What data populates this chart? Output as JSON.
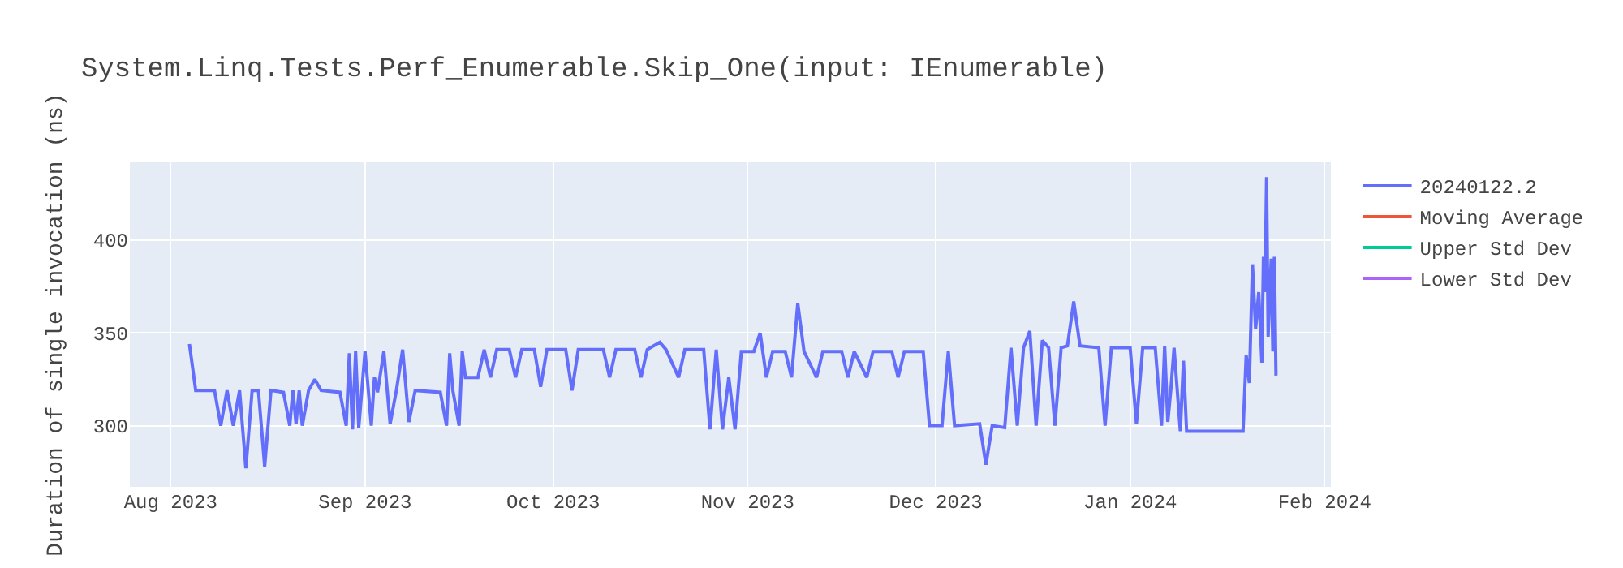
{
  "chart_data": {
    "type": "line",
    "title": "System.Linq.Tests.Perf_Enumerable.Skip_One(input: IEnumerable)",
    "ylabel": "Duration of single invocation (ns)",
    "xlim": [
      "2023-07-25T12:00",
      "2024-02-02"
    ],
    "xticks": [
      {
        "value": "2023-08-01",
        "label": "Aug 2023"
      },
      {
        "value": "2023-09-01",
        "label": "Sep 2023"
      },
      {
        "value": "2023-10-01",
        "label": "Oct 2023"
      },
      {
        "value": "2023-11-01",
        "label": "Nov 2023"
      },
      {
        "value": "2023-12-01",
        "label": "Dec 2023"
      },
      {
        "value": "2024-01-01",
        "label": "Jan 2024"
      },
      {
        "value": "2024-02-01",
        "label": "Feb 2024"
      }
    ],
    "ylim": [
      267,
      442
    ],
    "yticks": [
      300,
      350,
      400
    ],
    "grid": true,
    "legend": "top right",
    "marker": "none",
    "line_style": "solid",
    "series": [
      {
        "name": "20240122.2",
        "color": "#636efa",
        "x": [
          "2023-08-04",
          "2023-08-05",
          "2023-08-08",
          "2023-08-09",
          "2023-08-10",
          "2023-08-11",
          "2023-08-12",
          "2023-08-13",
          "2023-08-14",
          "2023-08-15",
          "2023-08-16",
          "2023-08-17",
          "2023-08-19",
          "2023-08-20",
          "2023-08-20T12:00",
          "2023-08-21",
          "2023-08-21T12:00",
          "2023-08-22",
          "2023-08-23",
          "2023-08-24",
          "2023-08-25",
          "2023-08-28",
          "2023-08-29",
          "2023-08-29T12:00",
          "2023-08-30",
          "2023-08-30T12:00",
          "2023-08-31",
          "2023-09-01",
          "2023-09-02",
          "2023-09-02T12:00",
          "2023-09-03",
          "2023-09-04",
          "2023-09-05",
          "2023-09-06",
          "2023-09-07",
          "2023-09-08",
          "2023-09-09",
          "2023-09-13",
          "2023-09-14",
          "2023-09-14T12:00",
          "2023-09-15",
          "2023-09-16",
          "2023-09-16T12:00",
          "2023-09-17",
          "2023-09-19",
          "2023-09-20",
          "2023-09-21",
          "2023-09-22",
          "2023-09-24",
          "2023-09-25",
          "2023-09-26",
          "2023-09-28",
          "2023-09-29",
          "2023-09-30",
          "2023-10-03",
          "2023-10-04",
          "2023-10-05",
          "2023-10-09",
          "2023-10-10",
          "2023-10-11",
          "2023-10-14",
          "2023-10-15",
          "2023-10-16",
          "2023-10-18",
          "2023-10-19",
          "2023-10-21",
          "2023-10-22",
          "2023-10-25",
          "2023-10-26",
          "2023-10-27",
          "2023-10-28",
          "2023-10-29",
          "2023-10-30",
          "2023-10-31",
          "2023-11-02",
          "2023-11-03",
          "2023-11-04",
          "2023-11-05",
          "2023-11-07",
          "2023-11-08",
          "2023-11-09",
          "2023-11-10",
          "2023-11-12",
          "2023-11-13",
          "2023-11-16",
          "2023-11-17",
          "2023-11-18",
          "2023-11-20",
          "2023-11-21",
          "2023-11-24",
          "2023-11-25",
          "2023-11-26",
          "2023-11-29",
          "2023-11-30",
          "2023-12-02",
          "2023-12-03",
          "2023-12-04",
          "2023-12-08",
          "2023-12-09",
          "2023-12-10",
          "2023-12-12",
          "2023-12-13",
          "2023-12-14",
          "2023-12-15",
          "2023-12-16",
          "2023-12-17",
          "2023-12-18",
          "2023-12-19",
          "2023-12-20",
          "2023-12-21",
          "2023-12-22",
          "2023-12-23",
          "2023-12-24",
          "2023-12-27",
          "2023-12-28",
          "2023-12-29",
          "2024-01-01",
          "2024-01-02",
          "2024-01-03",
          "2024-01-05",
          "2024-01-06",
          "2024-01-06T12:00",
          "2024-01-07",
          "2024-01-07T12:00",
          "2024-01-08",
          "2024-01-09",
          "2024-01-09T12:00",
          "2024-01-10",
          "2024-01-11",
          "2024-01-19",
          "2024-01-19T12:00",
          "2024-01-20",
          "2024-01-20T12:00",
          "2024-01-21",
          "2024-01-21T12:00",
          "2024-01-22",
          "2024-01-22T06:00",
          "2024-01-22T12:00",
          "2024-01-22T18:00",
          "2024-01-23",
          "2024-01-23T06:00",
          "2024-01-23T12:00",
          "2024-01-23T18:00",
          "2024-01-24",
          "2024-01-24T06:00"
        ],
        "values": [
          344,
          319,
          319,
          300,
          319,
          300,
          319,
          277,
          319,
          319,
          278,
          319,
          318,
          300,
          319,
          301,
          319,
          300,
          319,
          325,
          319,
          318,
          300,
          339,
          298,
          340,
          299,
          340,
          300,
          326,
          318,
          340,
          301,
          319,
          341,
          302,
          319,
          318,
          300,
          339,
          319,
          300,
          340,
          326,
          326,
          341,
          326,
          341,
          341,
          326,
          341,
          341,
          321,
          341,
          341,
          319,
          341,
          341,
          326,
          341,
          341,
          326,
          341,
          345,
          341,
          326,
          341,
          341,
          298,
          341,
          298,
          326,
          298,
          340,
          340,
          350,
          326,
          340,
          340,
          326,
          366,
          340,
          326,
          340,
          340,
          326,
          340,
          326,
          340,
          340,
          326,
          340,
          340,
          300,
          300,
          340,
          300,
          301,
          279,
          300,
          299,
          342,
          300,
          342,
          351,
          300,
          346,
          342,
          300,
          342,
          343,
          367,
          343,
          342,
          300,
          342,
          342,
          301,
          342,
          342,
          300,
          343,
          302,
          320,
          342,
          297,
          335,
          297,
          297,
          297,
          338,
          323,
          387,
          352,
          372,
          334,
          391,
          372,
          434,
          348,
          372,
          390,
          340,
          391,
          327
        ]
      },
      {
        "name": "Moving Average",
        "color": "#ef553b"
      },
      {
        "name": "Upper Std Dev",
        "color": "#00cc96"
      },
      {
        "name": "Lower Std Dev",
        "color": "#ab63fa"
      }
    ]
  }
}
